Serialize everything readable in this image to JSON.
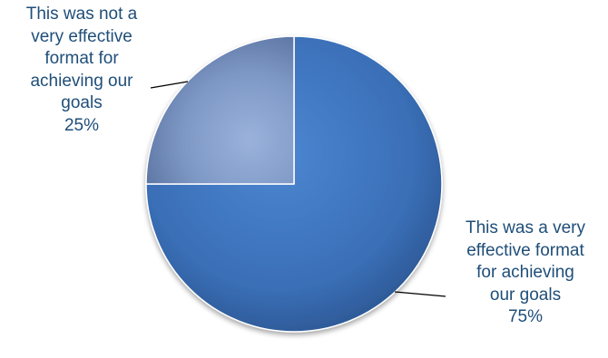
{
  "chart_data": {
    "type": "pie",
    "title": "",
    "slices": [
      {
        "label_lines": [
          "This was a very",
          "effective format",
          "for achieving",
          "our goals"
        ],
        "value": 75,
        "value_label": "75%",
        "color": "#3a6fb7"
      },
      {
        "label_lines": [
          "This was not a",
          "very effective",
          "format for",
          "achieving our",
          "goals"
        ],
        "value": 25,
        "value_label": "25%",
        "color": "#7e98c6"
      }
    ],
    "start_angle": "12 o'clock",
    "direction": "clockwise",
    "legend": "none",
    "label_color": "#1f4e79"
  }
}
